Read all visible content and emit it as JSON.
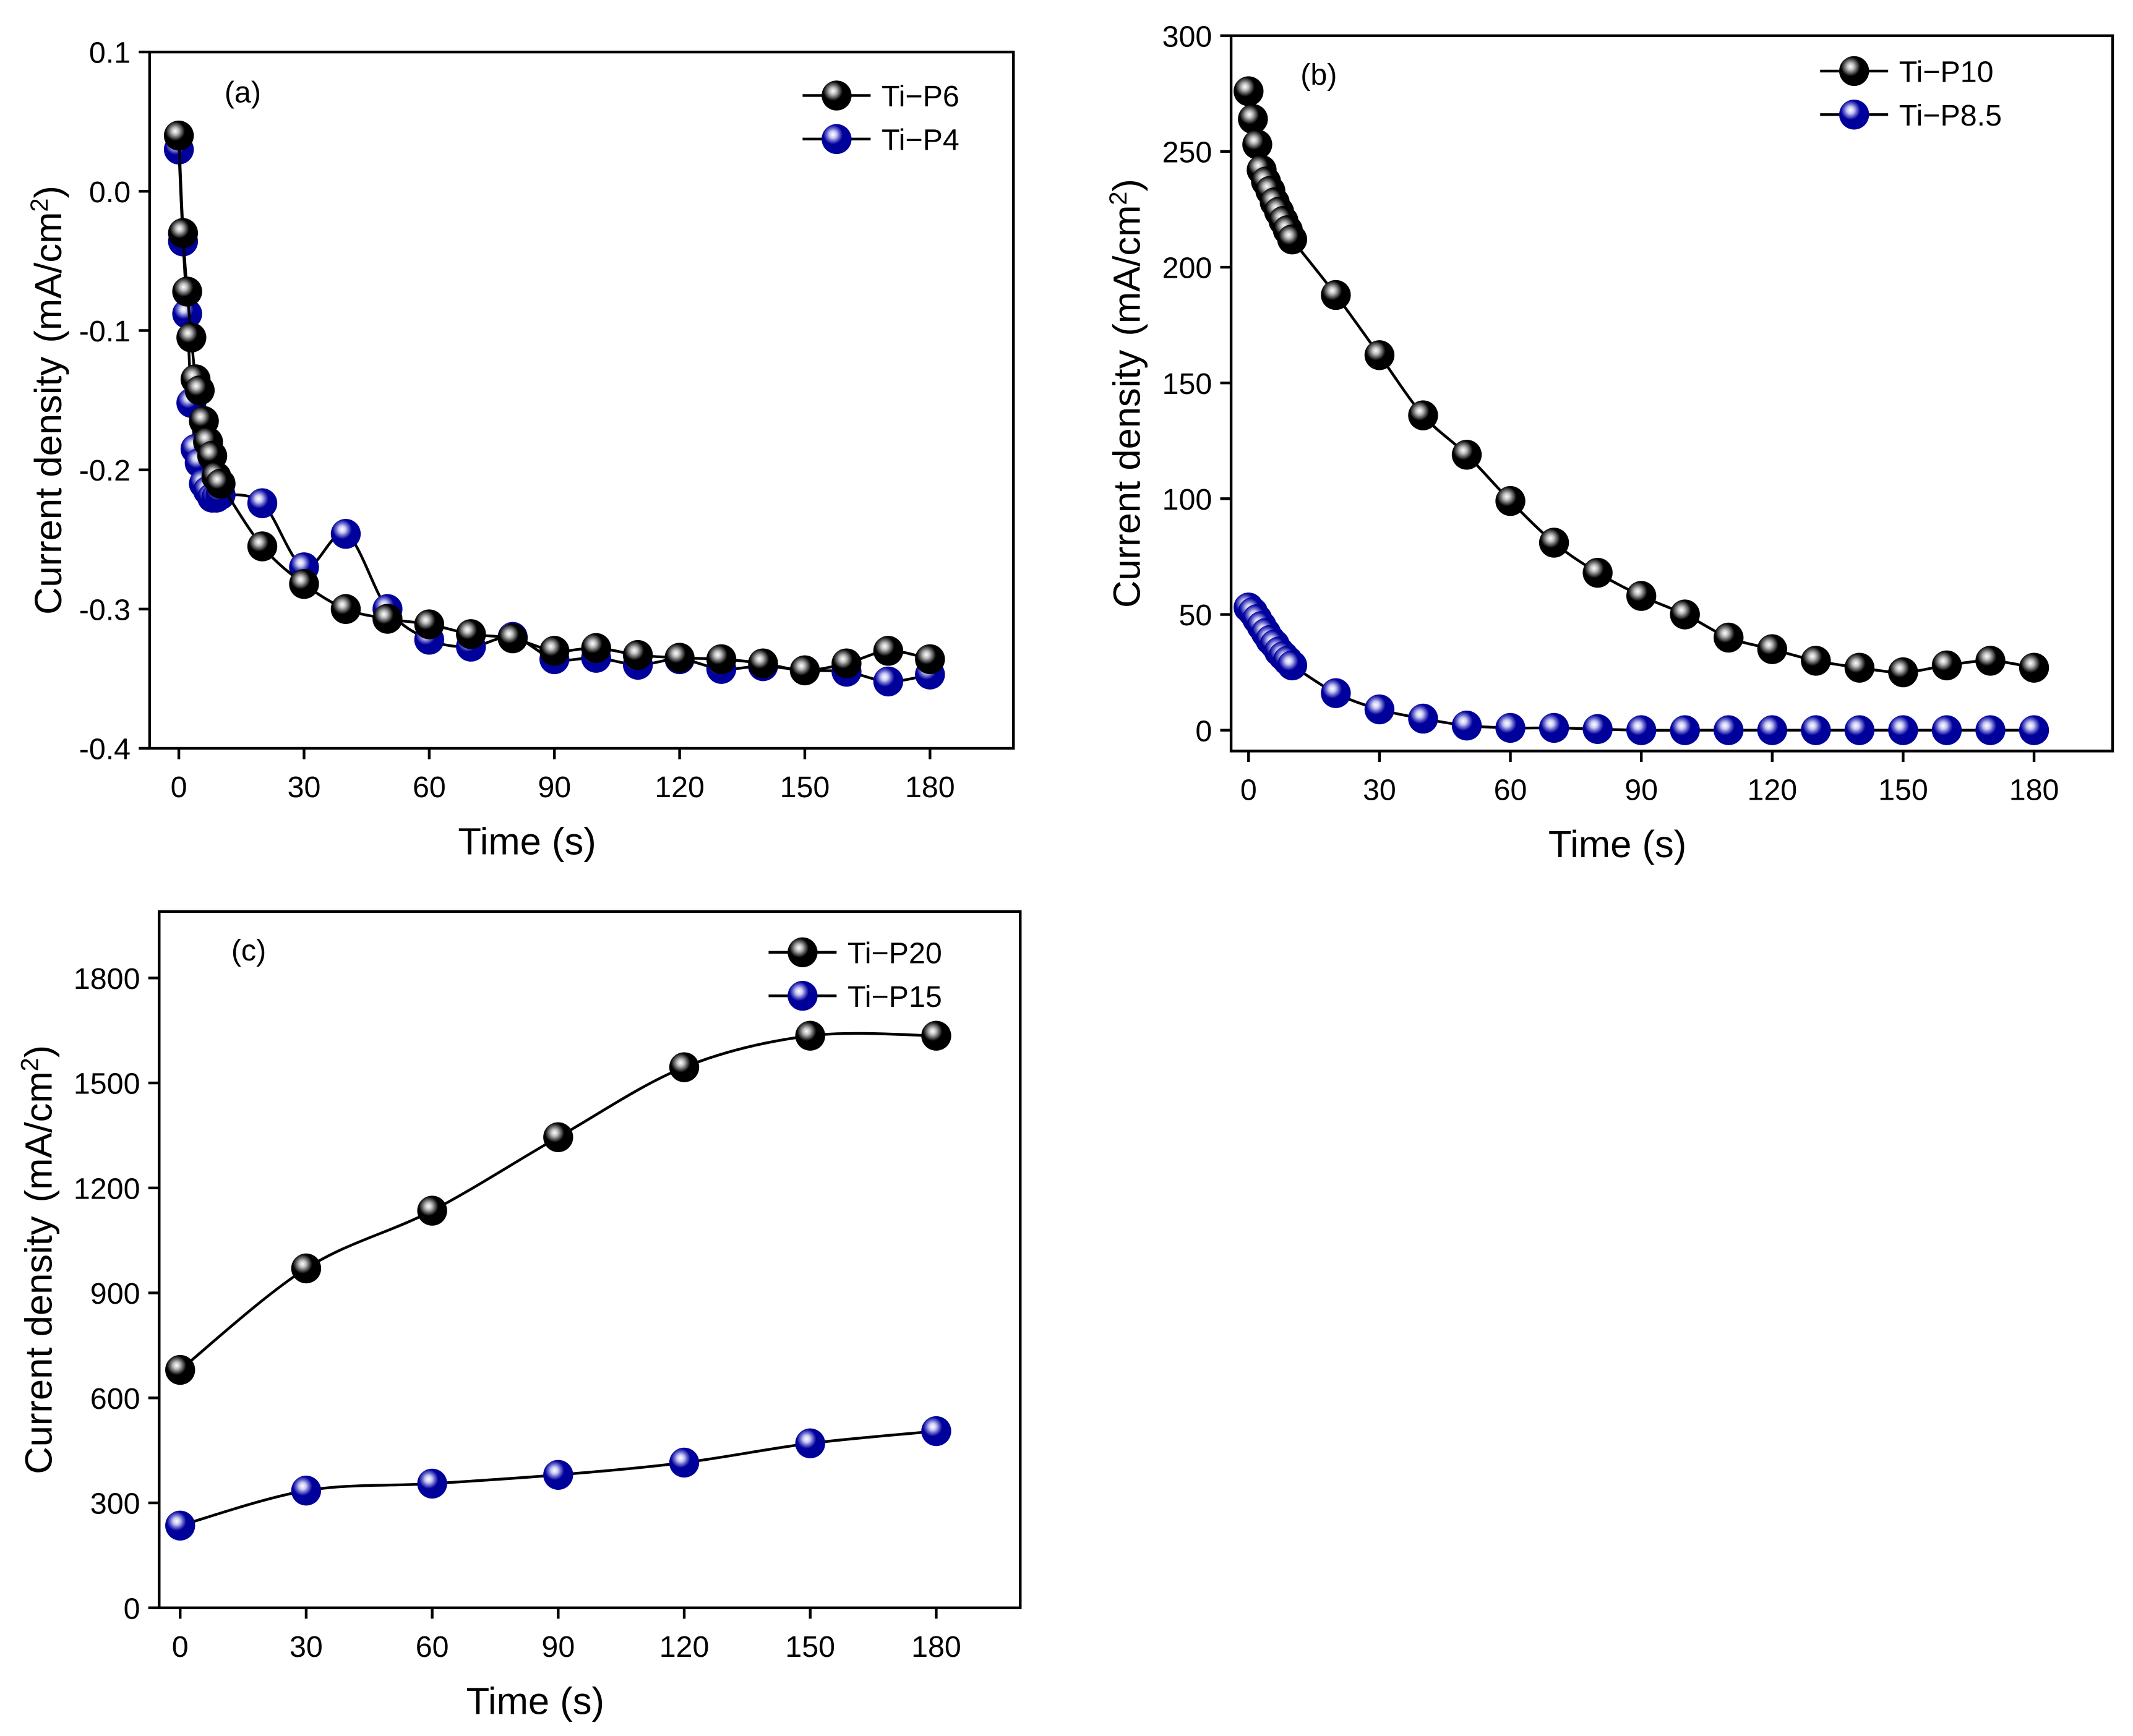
{
  "chart_data": [
    {
      "type": "line",
      "panel_label": "(a)",
      "xlabel": "Time (s)",
      "ylabel_main": "Current density",
      "ylabel_unit": "(mA/cm",
      "ylabel_sup": "2",
      "ylabel_close": ")",
      "xlim": [
        -7,
        200
      ],
      "ylim": [
        -0.4,
        0.1
      ],
      "xticks": [
        0,
        30,
        60,
        90,
        120,
        150,
        180
      ],
      "yticks": [
        0.1,
        0.0,
        -0.1,
        -0.2,
        -0.3,
        -0.4
      ],
      "ytick_labels": [
        "0.1",
        "0.0",
        "-0.1",
        "-0.2",
        "-0.3",
        "-0.4"
      ],
      "legend_position": "top-right",
      "series": [
        {
          "name": "Ti−P6",
          "color": "#000000",
          "x": [
            0,
            1,
            2,
            3,
            4,
            5,
            6,
            7,
            8,
            9,
            10,
            20,
            30,
            40,
            50,
            60,
            70,
            80,
            90,
            100,
            110,
            120,
            130,
            140,
            150,
            160,
            170,
            180
          ],
          "y": [
            0.04,
            -0.03,
            -0.072,
            -0.105,
            -0.135,
            -0.143,
            -0.165,
            -0.18,
            -0.19,
            -0.205,
            -0.21,
            -0.255,
            -0.282,
            -0.3,
            -0.307,
            -0.311,
            -0.318,
            -0.321,
            -0.33,
            -0.328,
            -0.333,
            -0.335,
            -0.336,
            -0.339,
            -0.344,
            -0.339,
            -0.33,
            -0.336
          ]
        },
        {
          "name": "Ti−P4",
          "color": "#00009a",
          "x": [
            0,
            1,
            2,
            3,
            4,
            5,
            6,
            7,
            8,
            9,
            10,
            20,
            30,
            40,
            50,
            60,
            70,
            80,
            90,
            100,
            110,
            120,
            130,
            140,
            150,
            160,
            170,
            180
          ],
          "y": [
            0.03,
            -0.036,
            -0.088,
            -0.152,
            -0.185,
            -0.195,
            -0.21,
            -0.215,
            -0.22,
            -0.22,
            -0.218,
            -0.224,
            -0.27,
            -0.246,
            -0.3,
            -0.322,
            -0.327,
            -0.32,
            -0.336,
            -0.335,
            -0.34,
            -0.336,
            -0.343,
            -0.341,
            -0.344,
            -0.345,
            -0.352,
            -0.347
          ]
        }
      ]
    },
    {
      "type": "line",
      "panel_label": "(b)",
      "xlabel": "Time (s)",
      "ylabel_main": "Current density",
      "ylabel_unit": "(mA/cm",
      "ylabel_sup": "2",
      "ylabel_close": ")",
      "xlim": [
        -4,
        198
      ],
      "ylim": [
        -9,
        300
      ],
      "xticks": [
        0,
        30,
        60,
        90,
        120,
        150,
        180
      ],
      "yticks": [
        0,
        50,
        100,
        150,
        200,
        250,
        300
      ],
      "ytick_labels": [
        "0",
        "50",
        "100",
        "150",
        "200",
        "250",
        "300"
      ],
      "legend_position": "top-right",
      "series": [
        {
          "name": "Ti−P10",
          "color": "#000000",
          "x": [
            0,
            1,
            2,
            3,
            4,
            5,
            6,
            7,
            8,
            9,
            10,
            20,
            30,
            40,
            50,
            60,
            70,
            80,
            90,
            100,
            110,
            120,
            130,
            140,
            150,
            160,
            170,
            180
          ],
          "y": [
            276,
            264,
            253,
            242,
            237,
            233,
            228,
            224,
            220,
            216,
            212,
            188,
            162,
            136,
            119,
            99,
            81,
            68,
            58,
            50,
            40,
            35,
            30,
            27,
            25,
            28,
            30,
            27
          ]
        },
        {
          "name": "Ti−P8.5",
          "color": "#00009a",
          "x": [
            0,
            1,
            2,
            3,
            4,
            5,
            6,
            7,
            8,
            9,
            10,
            20,
            30,
            40,
            50,
            60,
            70,
            80,
            90,
            100,
            110,
            120,
            130,
            140,
            150,
            160,
            170,
            180
          ],
          "y": [
            53,
            51,
            48,
            45,
            42,
            39,
            37,
            34,
            32,
            30,
            28,
            16,
            9,
            5,
            2,
            1,
            1,
            0.5,
            0,
            0,
            0,
            0,
            0,
            0,
            0,
            0,
            0,
            0
          ]
        }
      ]
    },
    {
      "type": "line",
      "panel_label": "(c)",
      "xlabel": "Time (s)",
      "ylabel_main": "Current density",
      "ylabel_unit": "(mA/cm",
      "ylabel_sup": "2",
      "ylabel_close": ")",
      "xlim": [
        -5,
        200
      ],
      "ylim": [
        0,
        1990
      ],
      "xticks": [
        0,
        30,
        60,
        90,
        120,
        150,
        180
      ],
      "yticks": [
        0,
        300,
        600,
        900,
        1200,
        1500,
        1800
      ],
      "ytick_labels": [
        "0",
        "300",
        "600",
        "900",
        "1200",
        "1500",
        "1800"
      ],
      "legend_position": "top-right",
      "series": [
        {
          "name": "Ti−P20",
          "color": "#000000",
          "x": [
            0,
            30,
            60,
            90,
            120,
            150,
            180
          ],
          "y": [
            680,
            970,
            1135,
            1345,
            1545,
            1635,
            1635
          ]
        },
        {
          "name": "Ti−P15",
          "color": "#00009a",
          "x": [
            0,
            30,
            60,
            90,
            120,
            150,
            180
          ],
          "y": [
            235,
            335,
            355,
            380,
            415,
            470,
            505
          ]
        }
      ]
    }
  ]
}
